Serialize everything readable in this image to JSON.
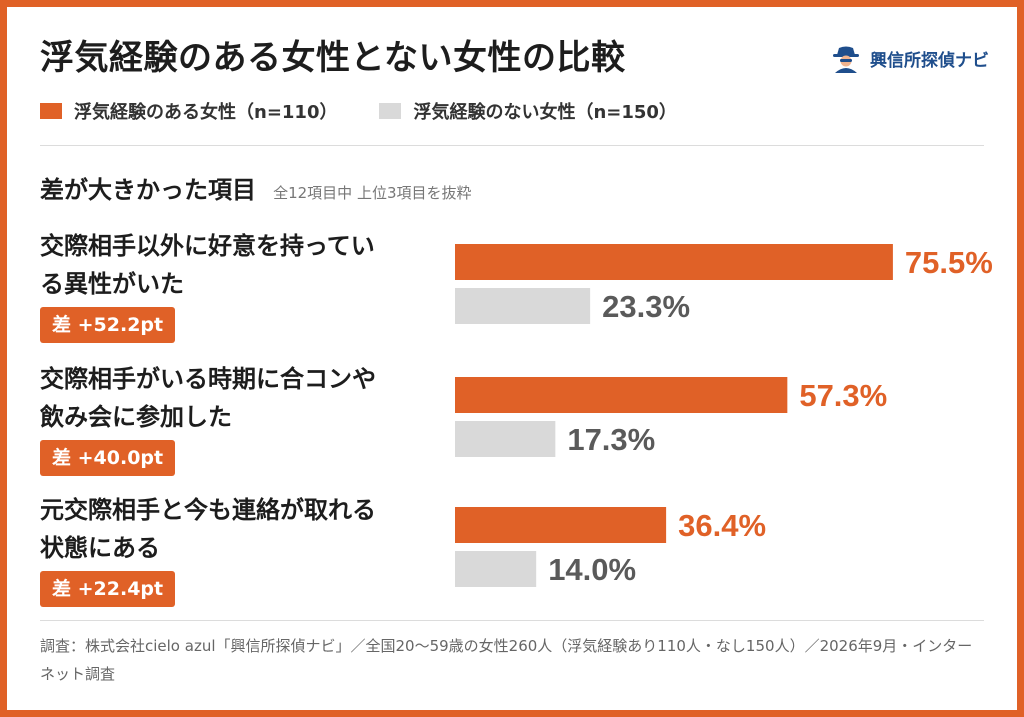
{
  "title": "浮気経験のある女性とない女性の比較",
  "brand": {
    "name": "興信所探偵ナビ",
    "icon": "detective-icon"
  },
  "colors": {
    "frame": "#e06127",
    "series_a": "#e06127",
    "series_b": "#d9d9d9",
    "value_b_text": "#5a5a5a"
  },
  "section": {
    "title": "差が大きかった項目",
    "subtitle": "全12項目中 上位3項目を抜粋"
  },
  "chart_data": {
    "type": "bar",
    "orientation": "horizontal",
    "categories": [
      "交際相手以外に好意を持っている異性がいた",
      "交際相手がいる時期に合コンや飲み会に参加した",
      "元交際相手と今も連絡が取れる状態にある"
    ],
    "series": [
      {
        "name": "浮気経験のある女性（n=110）",
        "values": [
          75.5,
          57.3,
          36.4
        ],
        "labels": [
          "75.5%",
          "57.3%",
          "36.4%"
        ]
      },
      {
        "name": "浮気経験のない女性（n=150）",
        "values": [
          23.3,
          17.3,
          14.0
        ],
        "labels": [
          "23.3%",
          "17.3%",
          "14.0%"
        ]
      }
    ],
    "xlim": [
      0,
      100
    ],
    "grid": false,
    "legend": "top-left"
  },
  "rows": [
    {
      "label_line1": "交際相手以外に好意を持ってい",
      "label_line2": "る異性がいた",
      "diff": "差 +52.2pt"
    },
    {
      "label_line1": "交際相手がいる時期に合コンや",
      "label_line2": "飲み会に参加した",
      "diff": "差 +40.0pt"
    },
    {
      "label_line1": "元交際相手と今も連絡が取れる",
      "label_line2": "状態にある",
      "diff": "差 +22.4pt"
    }
  ],
  "footnote": "調査：株式会社cielo azul「興信所探偵ナビ」／全国20〜59歳の女性260人（浮気経験あり110人・なし150人）／2026年9月・インターネット調査"
}
